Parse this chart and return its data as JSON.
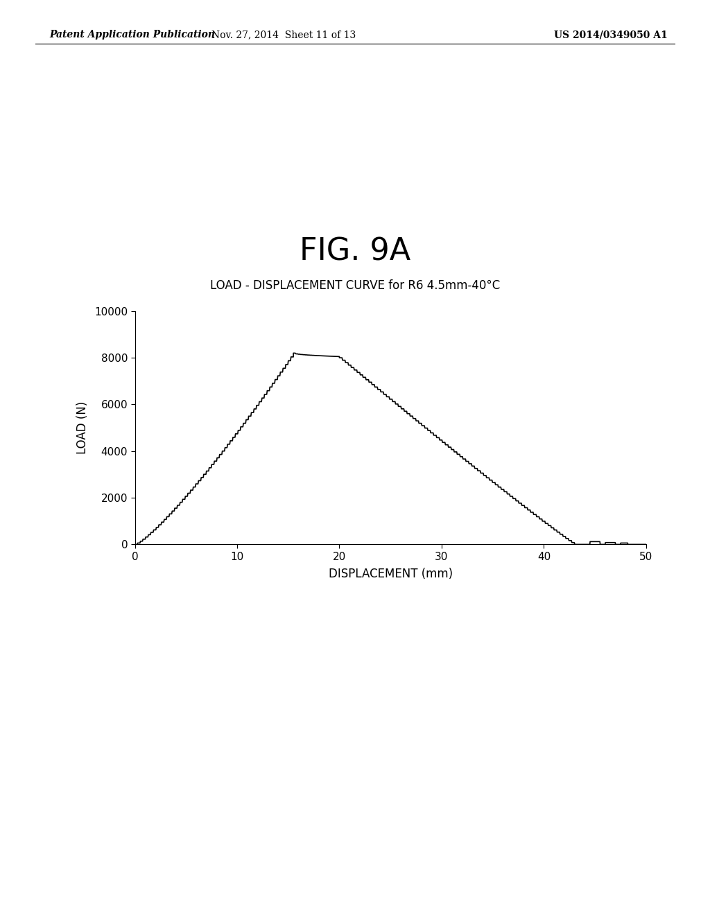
{
  "fig_title": "FIG. 9A",
  "subtitle": "LOAD - DISPLACEMENT CURVE for R6 4.5mm-40°C",
  "xlabel": "DISPLACEMENT (mm)",
  "ylabel": "LOAD (N)",
  "xlim": [
    0,
    50
  ],
  "ylim": [
    0,
    10000
  ],
  "xticks": [
    0,
    10,
    20,
    30,
    40,
    50
  ],
  "yticks": [
    0,
    2000,
    4000,
    6000,
    8000,
    10000
  ],
  "line_color": "#000000",
  "background_color": "#ffffff",
  "header_left": "Patent Application Publication",
  "header_center": "Nov. 27, 2014  Sheet 11 of 13",
  "header_right": "US 2014/0349050 A1",
  "fig_title_fontsize": 32,
  "subtitle_fontsize": 12,
  "axis_label_fontsize": 12,
  "tick_fontsize": 11,
  "header_fontsize": 10
}
